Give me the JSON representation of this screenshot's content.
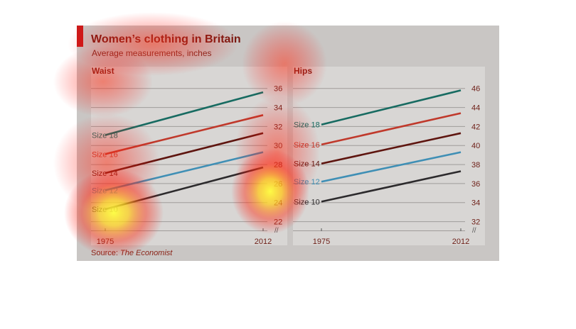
{
  "title": "Women’s clothing in Britain",
  "subtitle": "Average measurements, inches",
  "source": {
    "label": "Source:",
    "name": "The Economist"
  },
  "colors": {
    "size_18": "#176b61",
    "size_16": "#c0392b",
    "size_14": "#5e150f",
    "size_12": "#3f8fb5",
    "size_10": "#2c2a2c",
    "title": "#7a1a12",
    "accent": "#cc1a1a"
  },
  "chart_data": [
    {
      "type": "line",
      "title": "Waist",
      "x": [
        "1975",
        "2012"
      ],
      "ylim": [
        21,
        36.8
      ],
      "yticks": [
        "22",
        "24",
        "26",
        "28",
        "30",
        "32",
        "34",
        "36"
      ],
      "axis_break": "//",
      "grid": true,
      "series": [
        {
          "name": "Size 18",
          "values": [
            31.1,
            35.6
          ]
        },
        {
          "name": "Size 16",
          "values": [
            29.1,
            33.2
          ]
        },
        {
          "name": "Size 14",
          "values": [
            27.1,
            31.3
          ]
        },
        {
          "name": "Size 12",
          "values": [
            25.3,
            29.3
          ]
        },
        {
          "name": "Size 10",
          "values": [
            23.3,
            27.7
          ]
        }
      ]
    },
    {
      "type": "line",
      "title": "Hips",
      "x": [
        "1975",
        "2012"
      ],
      "ylim": [
        31,
        46.8
      ],
      "yticks": [
        "32",
        "34",
        "36",
        "38",
        "40",
        "42",
        "44",
        "46"
      ],
      "axis_break": "//",
      "grid": true,
      "series": [
        {
          "name": "Size 18",
          "values": [
            42.2,
            45.8
          ]
        },
        {
          "name": "Size 16",
          "values": [
            40.1,
            43.4
          ]
        },
        {
          "name": "Size 14",
          "values": [
            38.1,
            41.3
          ]
        },
        {
          "name": "Size 12",
          "values": [
            36.2,
            39.3
          ]
        },
        {
          "name": "Size 10",
          "values": [
            34.1,
            37.3
          ]
        }
      ]
    }
  ]
}
